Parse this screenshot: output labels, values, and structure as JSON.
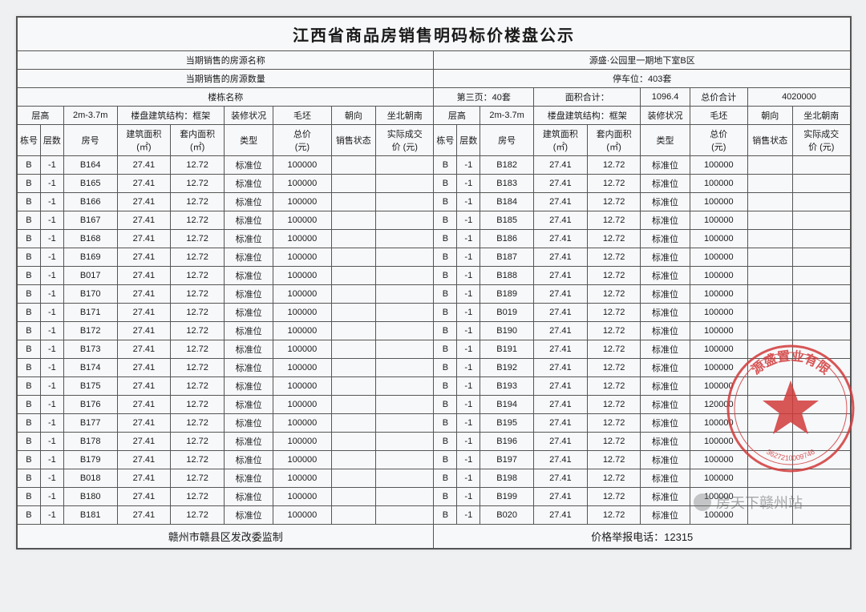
{
  "title": "江西省商品房销售明码标价楼盘公示",
  "meta": {
    "src_name_label": "当期销售的房源名称",
    "src_name_value": "源盛·公园里一期地下室B区",
    "src_qty_label": "当期销售的房源数量",
    "parking_label": "停车位：403套",
    "building_name_label": "楼栋名称",
    "page_label": "第三页：40套",
    "area_sum_label": "面积合计：",
    "area_sum_value": "1096.4",
    "total_price_label": "总价合计",
    "total_price_value": "4020000"
  },
  "hdr": {
    "ceng_gao": "层高",
    "height": "2m-3.7m",
    "struct_label": "楼盘建筑结构：框架",
    "deco_label": "装修状况",
    "maopi": "毛坯",
    "chaoxiang": "朝向",
    "zuobei": "坐北朝南",
    "donghao": "栋号",
    "cengshu": "层数",
    "fanghao": "房号",
    "jz_area": "建筑面积\n(㎡)",
    "tn_area": "套内面积\n(㎡)",
    "type": "类型",
    "total": "总价\n(元)",
    "status": "销售状态",
    "actual": "实际成交\n价 (元)"
  },
  "left_rows": [
    {
      "b": "B",
      "f": "-1",
      "no": "B164",
      "a1": "27.41",
      "a2": "12.72",
      "t": "标准位",
      "p": "100000"
    },
    {
      "b": "B",
      "f": "-1",
      "no": "B165",
      "a1": "27.41",
      "a2": "12.72",
      "t": "标准位",
      "p": "100000"
    },
    {
      "b": "B",
      "f": "-1",
      "no": "B166",
      "a1": "27.41",
      "a2": "12.72",
      "t": "标准位",
      "p": "100000"
    },
    {
      "b": "B",
      "f": "-1",
      "no": "B167",
      "a1": "27.41",
      "a2": "12.72",
      "t": "标准位",
      "p": "100000"
    },
    {
      "b": "B",
      "f": "-1",
      "no": "B168",
      "a1": "27.41",
      "a2": "12.72",
      "t": "标准位",
      "p": "100000"
    },
    {
      "b": "B",
      "f": "-1",
      "no": "B169",
      "a1": "27.41",
      "a2": "12.72",
      "t": "标准位",
      "p": "100000"
    },
    {
      "b": "B",
      "f": "-1",
      "no": "B017",
      "a1": "27.41",
      "a2": "12.72",
      "t": "标准位",
      "p": "100000"
    },
    {
      "b": "B",
      "f": "-1",
      "no": "B170",
      "a1": "27.41",
      "a2": "12.72",
      "t": "标准位",
      "p": "100000"
    },
    {
      "b": "B",
      "f": "-1",
      "no": "B171",
      "a1": "27.41",
      "a2": "12.72",
      "t": "标准位",
      "p": "100000"
    },
    {
      "b": "B",
      "f": "-1",
      "no": "B172",
      "a1": "27.41",
      "a2": "12.72",
      "t": "标准位",
      "p": "100000"
    },
    {
      "b": "B",
      "f": "-1",
      "no": "B173",
      "a1": "27.41",
      "a2": "12.72",
      "t": "标准位",
      "p": "100000"
    },
    {
      "b": "B",
      "f": "-1",
      "no": "B174",
      "a1": "27.41",
      "a2": "12.72",
      "t": "标准位",
      "p": "100000"
    },
    {
      "b": "B",
      "f": "-1",
      "no": "B175",
      "a1": "27.41",
      "a2": "12.72",
      "t": "标准位",
      "p": "100000"
    },
    {
      "b": "B",
      "f": "-1",
      "no": "B176",
      "a1": "27.41",
      "a2": "12.72",
      "t": "标准位",
      "p": "100000"
    },
    {
      "b": "B",
      "f": "-1",
      "no": "B177",
      "a1": "27.41",
      "a2": "12.72",
      "t": "标准位",
      "p": "100000"
    },
    {
      "b": "B",
      "f": "-1",
      "no": "B178",
      "a1": "27.41",
      "a2": "12.72",
      "t": "标准位",
      "p": "100000"
    },
    {
      "b": "B",
      "f": "-1",
      "no": "B179",
      "a1": "27.41",
      "a2": "12.72",
      "t": "标准位",
      "p": "100000"
    },
    {
      "b": "B",
      "f": "-1",
      "no": "B018",
      "a1": "27.41",
      "a2": "12.72",
      "t": "标准位",
      "p": "100000"
    },
    {
      "b": "B",
      "f": "-1",
      "no": "B180",
      "a1": "27.41",
      "a2": "12.72",
      "t": "标准位",
      "p": "100000"
    },
    {
      "b": "B",
      "f": "-1",
      "no": "B181",
      "a1": "27.41",
      "a2": "12.72",
      "t": "标准位",
      "p": "100000"
    }
  ],
  "right_rows": [
    {
      "b": "B",
      "f": "-1",
      "no": "B182",
      "a1": "27.41",
      "a2": "12.72",
      "t": "标准位",
      "p": "100000"
    },
    {
      "b": "B",
      "f": "-1",
      "no": "B183",
      "a1": "27.41",
      "a2": "12.72",
      "t": "标准位",
      "p": "100000"
    },
    {
      "b": "B",
      "f": "-1",
      "no": "B184",
      "a1": "27.41",
      "a2": "12.72",
      "t": "标准位",
      "p": "100000"
    },
    {
      "b": "B",
      "f": "-1",
      "no": "B185",
      "a1": "27.41",
      "a2": "12.72",
      "t": "标准位",
      "p": "100000"
    },
    {
      "b": "B",
      "f": "-1",
      "no": "B186",
      "a1": "27.41",
      "a2": "12.72",
      "t": "标准位",
      "p": "100000"
    },
    {
      "b": "B",
      "f": "-1",
      "no": "B187",
      "a1": "27.41",
      "a2": "12.72",
      "t": "标准位",
      "p": "100000"
    },
    {
      "b": "B",
      "f": "-1",
      "no": "B188",
      "a1": "27.41",
      "a2": "12.72",
      "t": "标准位",
      "p": "100000"
    },
    {
      "b": "B",
      "f": "-1",
      "no": "B189",
      "a1": "27.41",
      "a2": "12.72",
      "t": "标准位",
      "p": "100000"
    },
    {
      "b": "B",
      "f": "-1",
      "no": "B019",
      "a1": "27.41",
      "a2": "12.72",
      "t": "标准位",
      "p": "100000"
    },
    {
      "b": "B",
      "f": "-1",
      "no": "B190",
      "a1": "27.41",
      "a2": "12.72",
      "t": "标准位",
      "p": "100000"
    },
    {
      "b": "B",
      "f": "-1",
      "no": "B191",
      "a1": "27.41",
      "a2": "12.72",
      "t": "标准位",
      "p": "100000"
    },
    {
      "b": "B",
      "f": "-1",
      "no": "B192",
      "a1": "27.41",
      "a2": "12.72",
      "t": "标准位",
      "p": "100000"
    },
    {
      "b": "B",
      "f": "-1",
      "no": "B193",
      "a1": "27.41",
      "a2": "12.72",
      "t": "标准位",
      "p": "100000"
    },
    {
      "b": "B",
      "f": "-1",
      "no": "B194",
      "a1": "27.41",
      "a2": "12.72",
      "t": "标准位",
      "p": "120000"
    },
    {
      "b": "B",
      "f": "-1",
      "no": "B195",
      "a1": "27.41",
      "a2": "12.72",
      "t": "标准位",
      "p": "100000"
    },
    {
      "b": "B",
      "f": "-1",
      "no": "B196",
      "a1": "27.41",
      "a2": "12.72",
      "t": "标准位",
      "p": "100000"
    },
    {
      "b": "B",
      "f": "-1",
      "no": "B197",
      "a1": "27.41",
      "a2": "12.72",
      "t": "标准位",
      "p": "100000"
    },
    {
      "b": "B",
      "f": "-1",
      "no": "B198",
      "a1": "27.41",
      "a2": "12.72",
      "t": "标准位",
      "p": "100000"
    },
    {
      "b": "B",
      "f": "-1",
      "no": "B199",
      "a1": "27.41",
      "a2": "12.72",
      "t": "标准位",
      "p": "100000"
    },
    {
      "b": "B",
      "f": "-1",
      "no": "B020",
      "a1": "27.41",
      "a2": "12.72",
      "t": "标准位",
      "p": "100000"
    }
  ],
  "footer": {
    "left": "赣州市赣县区发改委监制",
    "right": "价格举报电话：12315"
  },
  "watermark": "房天下赣州站",
  "stamp": {
    "top_text": "源盛置业有限",
    "bottom_text": "3627210009746",
    "color": "#d23a3a"
  },
  "col_widths_pct": [
    2.6,
    2.6,
    6.0,
    6.0,
    6.0,
    5.5,
    6.5,
    5.0,
    6.5,
    2.6,
    2.6,
    6.0,
    6.0,
    6.0,
    5.5,
    6.5,
    5.0,
    6.5
  ]
}
